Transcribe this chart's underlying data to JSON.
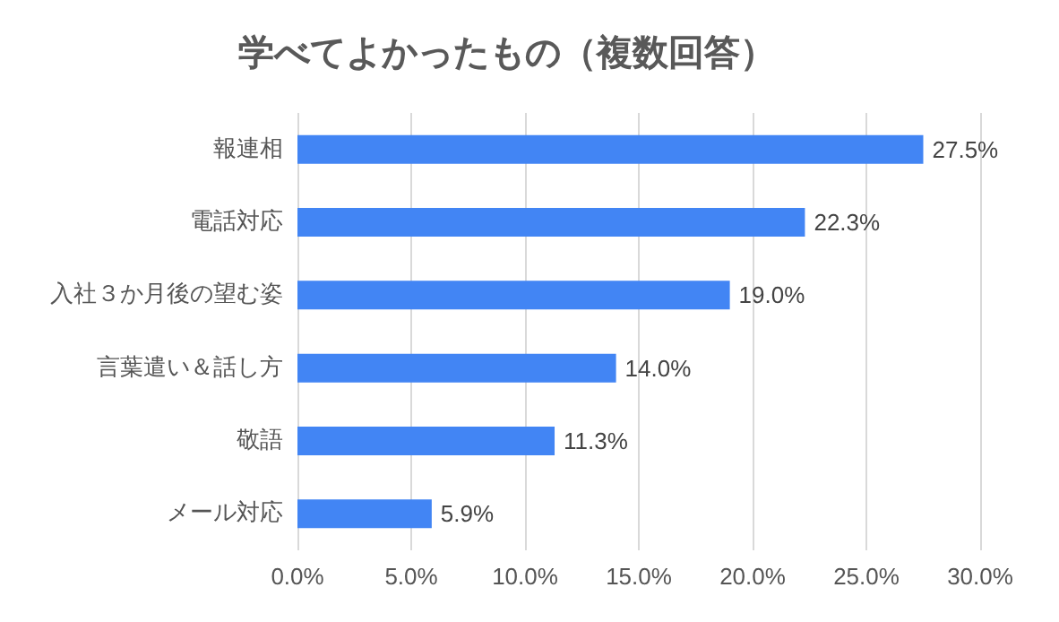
{
  "chart_data": {
    "type": "bar",
    "orientation": "horizontal",
    "title": "学べてよかったもの（複数回答）",
    "categories": [
      "報連相",
      "電話対応",
      "入社３か月後の望む姿",
      "言葉遣い＆話し方",
      "敬語",
      "メール対応"
    ],
    "values": [
      27.5,
      22.3,
      19.0,
      14.0,
      11.3,
      5.9
    ],
    "value_labels": [
      "27.5%",
      "22.3%",
      "19.0%",
      "14.0%",
      "11.3%",
      "5.9%"
    ],
    "color": "#4285f4",
    "xlim": [
      0,
      30
    ],
    "xticks": [
      {
        "value": 0,
        "label": "0.0%"
      },
      {
        "value": 5,
        "label": "5.0%"
      },
      {
        "value": 10,
        "label": "10.0%"
      },
      {
        "value": 15,
        "label": "15.0%"
      },
      {
        "value": 20,
        "label": "20.0%"
      },
      {
        "value": 25,
        "label": "25.0%"
      },
      {
        "value": 30,
        "label": "30.0%"
      }
    ],
    "grid": "x"
  }
}
